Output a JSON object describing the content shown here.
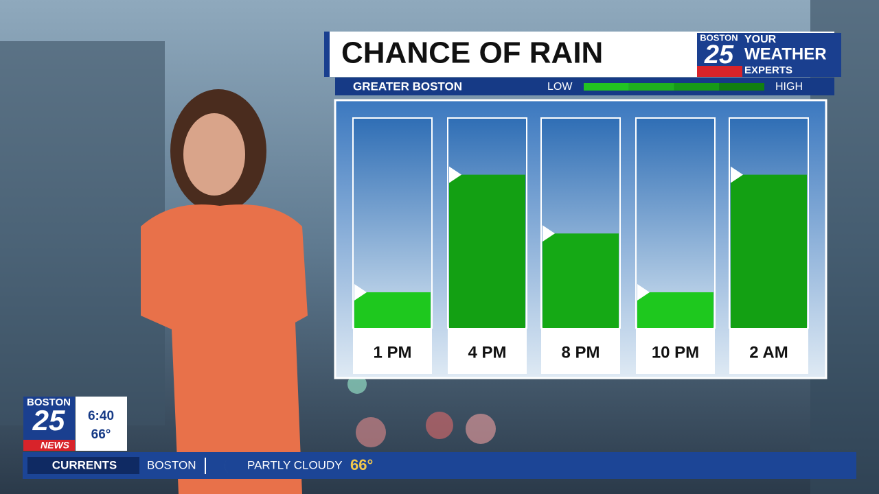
{
  "chart_data": {
    "type": "bar",
    "title": "CHANCE OF RAIN",
    "subtitle": "GREATER BOSTON",
    "scale_low": "LOW",
    "scale_high": "HIGH",
    "scale_colors": [
      "#22c322",
      "#1fb01f",
      "#179a17",
      "#117f11"
    ],
    "categories": [
      "1 PM",
      "4 PM",
      "8 PM",
      "10 PM",
      "2 AM"
    ],
    "values": [
      17,
      73,
      45,
      17,
      73
    ],
    "colors": [
      "#1ec81e",
      "#13a013",
      "#15a915",
      "#1ec81e",
      "#13a013"
    ],
    "ylim": [
      0,
      100
    ]
  },
  "logo": {
    "top": "BOSTON",
    "number": "25",
    "line1": "YOUR",
    "line2": "WEATHER",
    "line3": "EXPERTS"
  },
  "corner": {
    "top": "BOSTON",
    "number": "25",
    "bottom": "NEWS",
    "time": "6:40",
    "temp": "66°"
  },
  "ticker": {
    "label": "CURRENTS",
    "city": "BOSTON",
    "condition": "PARTLY CLOUDY",
    "temp": "66°"
  }
}
